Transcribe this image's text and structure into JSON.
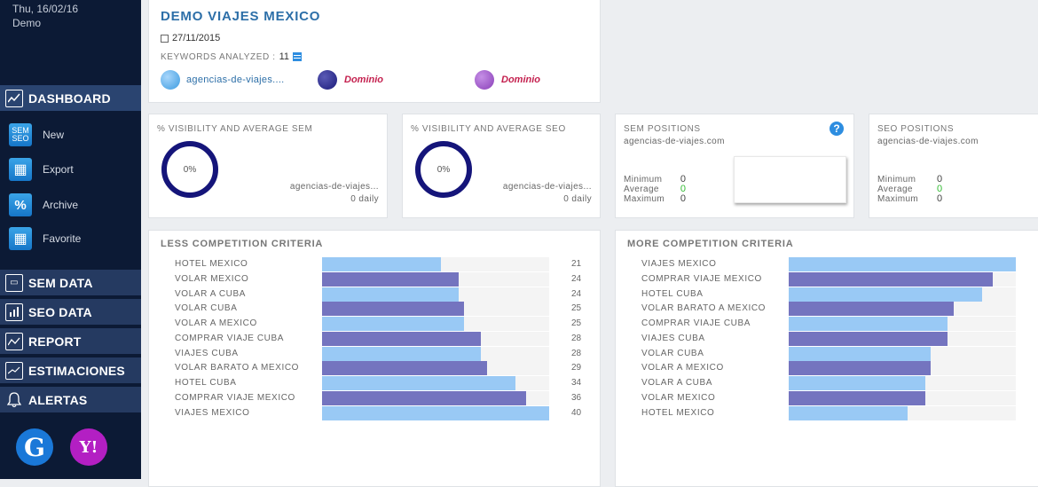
{
  "sidebar": {
    "date": "Thu, 16/02/16",
    "user": "Demo",
    "dashboard": "DASHBOARD",
    "sub_items": [
      {
        "label": "New",
        "icon": "sem-seo-icon",
        "icon_text": "SEM SEO"
      },
      {
        "label": "Export",
        "icon": "export-grid-icon",
        "icon_text": "▦"
      },
      {
        "label": "Archive",
        "icon": "archive-percent-icon",
        "icon_text": "%"
      },
      {
        "label": "Favorite",
        "icon": "favorite-grid-icon",
        "icon_text": "▦"
      }
    ],
    "sections": [
      {
        "label": "SEM DATA",
        "icon": "sem-data-icon"
      },
      {
        "label": "SEO DATA",
        "icon": "seo-data-icon"
      },
      {
        "label": "REPORT",
        "icon": "report-icon"
      },
      {
        "label": "ESTIMACIONES",
        "icon": "estimaciones-icon"
      },
      {
        "label": "ALERTAS",
        "icon": "bell-icon"
      }
    ],
    "engines": [
      {
        "label": "G",
        "icon": "google-icon",
        "color": "#1a78d8"
      },
      {
        "label": "Y!",
        "icon": "yahoo-icon",
        "color": "#b31fc3"
      }
    ]
  },
  "header": {
    "title": "DEMO VIAJES MEXICO",
    "date": "27/11/2015",
    "keywords_label": "KEYWORDS ANALYZED :",
    "keywords_count": "11",
    "domains": [
      {
        "label": "agencias-de-viajes....",
        "icon": "globe-icon",
        "color": "#3b9be0",
        "style": "link"
      },
      {
        "label": "Dominio",
        "icon": "globe-icon",
        "color": "#1b1b7a",
        "style": "accent"
      },
      {
        "label": "Dominio",
        "icon": "globe-icon",
        "color": "#8a3fb8",
        "style": "accent"
      }
    ]
  },
  "visibility_sem": {
    "title": "% VISIBILITY AND AVERAGE SEM",
    "percent": "0%",
    "url": "agencias-de-viajes...",
    "daily": "0 daily"
  },
  "visibility_seo": {
    "title": "% VISIBILITY AND AVERAGE SEO",
    "percent": "0%",
    "url": "agencias-de-viajes...",
    "daily": "0 daily"
  },
  "sem_positions": {
    "title": "SEM POSITIONS",
    "url": "agencias-de-viajes.com",
    "rows": [
      {
        "label": "Minimum",
        "value": "0"
      },
      {
        "label": "Average",
        "value": "0"
      },
      {
        "label": "Maximum",
        "value": "0"
      }
    ]
  },
  "seo_positions": {
    "title": "SEO POSITIONS",
    "url": "agencias-de-viajes.com",
    "rows": [
      {
        "label": "Minimum",
        "value": "0"
      },
      {
        "label": "Average",
        "value": "0"
      },
      {
        "label": "Maximum",
        "value": "0"
      }
    ]
  },
  "colors": {
    "light_bar": "#99c9f5",
    "dark_bar": "#7474bf",
    "green": "#33bb33"
  },
  "chart_data": [
    {
      "type": "bar",
      "title": "LESS COMPETITION CRITERIA",
      "categories": [
        "HOTEL MEXICO",
        "VOLAR MEXICO",
        "VOLAR A CUBA",
        "VOLAR CUBA",
        "VOLAR A MEXICO",
        "COMPRAR VIAJE CUBA",
        "VIAJES CUBA",
        "VOLAR BARATO A MEXICO",
        "HOTEL CUBA",
        "COMPRAR VIAJE MEXICO",
        "VIAJES MEXICO"
      ],
      "values": [
        21,
        24,
        24,
        25,
        25,
        28,
        28,
        29,
        34,
        36,
        40
      ],
      "xlim": [
        0,
        40
      ]
    },
    {
      "type": "bar",
      "title": "MORE COMPETITION CRITERIA",
      "categories": [
        "VIAJES MEXICO",
        "COMPRAR VIAJE MEXICO",
        "HOTEL CUBA",
        "VOLAR BARATO A MEXICO",
        "COMPRAR VIAJE CUBA",
        "VIAJES CUBA",
        "VOLAR CUBA",
        "VOLAR A MEXICO",
        "VOLAR A CUBA",
        "VOLAR MEXICO",
        "HOTEL MEXICO"
      ],
      "values": [
        40,
        36,
        34,
        29,
        28,
        28,
        25,
        25,
        24,
        24,
        21
      ],
      "xlim": [
        0,
        40
      ]
    }
  ]
}
